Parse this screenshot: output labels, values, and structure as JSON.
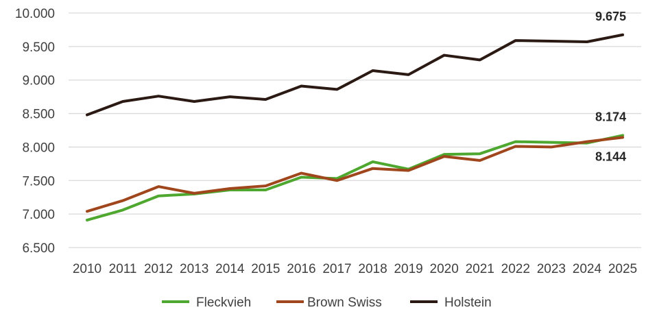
{
  "chart_data": {
    "type": "line",
    "title": "",
    "xlabel": "",
    "ylabel": "",
    "x": [
      "2010",
      "2011",
      "2012",
      "2013",
      "2014",
      "2015",
      "2016",
      "2017",
      "2018",
      "2019",
      "2020",
      "2021",
      "2022",
      "2023",
      "2024",
      "2025"
    ],
    "y_ticks": [
      "6.500",
      "7.000",
      "7.500",
      "8.000",
      "8.500",
      "9.000",
      "9.500",
      "10.000"
    ],
    "ylim": [
      6500,
      10000
    ],
    "grid": "horizontal",
    "legend_position": "bottom",
    "series": [
      {
        "name": "Fleckvieh",
        "color": "#4ea72e",
        "values": [
          6910,
          7060,
          7270,
          7300,
          7360,
          7360,
          7550,
          7530,
          7780,
          7670,
          7890,
          7900,
          8080,
          8070,
          8060,
          8174
        ]
      },
      {
        "name": "Brown Swiss",
        "color": "#a0461c",
        "values": [
          7040,
          7200,
          7410,
          7310,
          7380,
          7420,
          7610,
          7500,
          7680,
          7650,
          7860,
          7800,
          8010,
          8000,
          8080,
          8144
        ]
      },
      {
        "name": "Holstein",
        "color": "#2b1a14",
        "values": [
          8480,
          8680,
          8760,
          8680,
          8750,
          8710,
          8910,
          8860,
          9140,
          9080,
          9370,
          9300,
          9590,
          9580,
          9570,
          9675
        ]
      }
    ],
    "annotations": [
      {
        "series": "Holstein",
        "x": "2025",
        "text": "9.675"
      },
      {
        "series": "Fleckvieh",
        "x": "2025",
        "text": "8.174"
      },
      {
        "series": "Brown Swiss",
        "x": "2025",
        "text": "8.144"
      }
    ]
  }
}
